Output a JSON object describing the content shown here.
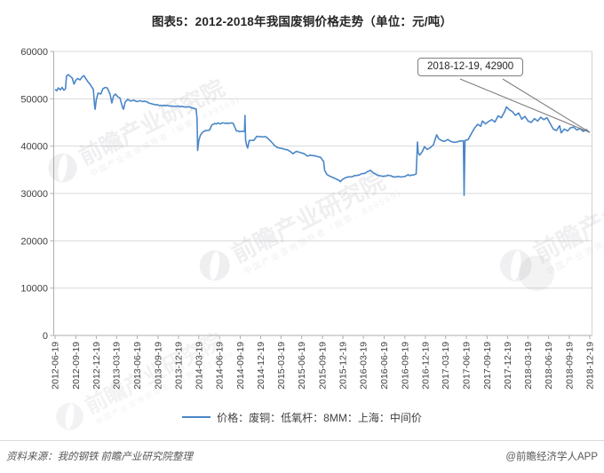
{
  "title": "图表5：2012-2018年我国废铜价格走势（单位：元/吨）",
  "annotation": {
    "label": "2018-12-19, 42900"
  },
  "legend": {
    "label": "价格：废铜：低氧杆：8MM：上海：中间价"
  },
  "footer": {
    "source": "资料来源：我的钢铁  前瞻产业研究院整理",
    "brand": "@前瞻经济学人APP"
  },
  "watermark": {
    "text": "前瞻产业研究院",
    "subtext": "中国产业咨询领导者",
    "stock": "（股票：839599）"
  },
  "colors": {
    "line": "#4a86c8",
    "grid": "#d9d9d9",
    "axis": "#aeaeae",
    "border": "#d2d2d2",
    "tick_label": "#404040",
    "callout": "#7f7f7f",
    "watermark": "#8b8b97"
  },
  "chart_data": {
    "type": "line",
    "title": "图表5：2012-2018年我国废铜价格走势（单位：元/吨）",
    "unit": "元/吨",
    "ylim": [
      0,
      60000
    ],
    "ytick_step": 10000,
    "grid": "horizontal",
    "legend_position": "bottom",
    "x_ticks": [
      "2012-06-19",
      "2012-09-19",
      "2012-12-19",
      "2013-03-19",
      "2013-06-19",
      "2013-09-19",
      "2013-12-19",
      "2014-03-19",
      "2014-06-19",
      "2014-09-19",
      "2014-12-19",
      "2015-03-19",
      "2015-06-19",
      "2015-09-19",
      "2015-12-19",
      "2016-03-19",
      "2016-06-19",
      "2016-09-19",
      "2016-12-19",
      "2017-03-19",
      "2017-06-19",
      "2017-09-19",
      "2017-12-19",
      "2018-03-19",
      "2018-06-19",
      "2018-09-19",
      "2018-12-19"
    ],
    "annotation": {
      "date": "2018-12-19",
      "value": 42900,
      "label": "2018-12-19, 42900"
    },
    "series": [
      {
        "name": "价格：废铜：低氧杆：8MM：上海：中间价",
        "points": [
          [
            "2012-06-19",
            52000
          ],
          [
            "2012-06-26",
            51700
          ],
          [
            "2012-07-03",
            52300
          ],
          [
            "2012-07-12",
            51900
          ],
          [
            "2012-07-20",
            52400
          ],
          [
            "2012-07-28",
            51800
          ],
          [
            "2012-08-04",
            52100
          ],
          [
            "2012-08-09",
            54800
          ],
          [
            "2012-08-16",
            55100
          ],
          [
            "2012-08-24",
            54800
          ],
          [
            "2012-09-03",
            54400
          ],
          [
            "2012-09-11",
            53100
          ],
          [
            "2012-09-19",
            53900
          ],
          [
            "2012-09-27",
            54300
          ],
          [
            "2012-10-08",
            54000
          ],
          [
            "2012-10-17",
            54600
          ],
          [
            "2012-10-25",
            54900
          ],
          [
            "2012-11-02",
            54300
          ],
          [
            "2012-11-12",
            53600
          ],
          [
            "2012-11-21",
            53100
          ],
          [
            "2012-11-29",
            52500
          ],
          [
            "2012-12-06",
            52000
          ],
          [
            "2012-12-12",
            48300
          ],
          [
            "2012-12-14",
            47800
          ],
          [
            "2012-12-19",
            49800
          ],
          [
            "2012-12-27",
            51200
          ],
          [
            "2013-01-08",
            51000
          ],
          [
            "2013-01-17",
            52100
          ],
          [
            "2013-01-28",
            52400
          ],
          [
            "2013-02-06",
            52300
          ],
          [
            "2013-02-18",
            51000
          ],
          [
            "2013-02-26",
            49100
          ],
          [
            "2013-03-06",
            50600
          ],
          [
            "2013-03-14",
            51000
          ],
          [
            "2013-03-25",
            50400
          ],
          [
            "2013-04-03",
            50200
          ],
          [
            "2013-04-15",
            48100
          ],
          [
            "2013-04-19",
            47800
          ],
          [
            "2013-04-26",
            49300
          ],
          [
            "2013-05-08",
            49900
          ],
          [
            "2013-05-20",
            49500
          ],
          [
            "2013-06-03",
            49700
          ],
          [
            "2013-06-17",
            49400
          ],
          [
            "2013-07-01",
            49600
          ],
          [
            "2013-07-15",
            49400
          ],
          [
            "2013-08-01",
            49400
          ],
          [
            "2013-08-20",
            49000
          ],
          [
            "2013-09-10",
            48700
          ],
          [
            "2013-10-08",
            48500
          ],
          [
            "2013-11-05",
            48500
          ],
          [
            "2013-12-03",
            48400
          ],
          [
            "2014-01-07",
            48400
          ],
          [
            "2014-02-11",
            48200
          ],
          [
            "2014-03-07",
            47900
          ],
          [
            "2014-03-11",
            45900
          ],
          [
            "2014-03-13",
            41500
          ],
          [
            "2014-03-14",
            39100
          ],
          [
            "2014-03-19",
            41200
          ],
          [
            "2014-03-26",
            42300
          ],
          [
            "2014-04-04",
            42900
          ],
          [
            "2014-04-18",
            43300
          ],
          [
            "2014-05-06",
            43400
          ],
          [
            "2014-05-16",
            44500
          ],
          [
            "2014-05-30",
            44800
          ],
          [
            "2014-06-17",
            44800
          ],
          [
            "2014-07-08",
            44900
          ],
          [
            "2014-07-29",
            44800
          ],
          [
            "2014-08-19",
            44800
          ],
          [
            "2014-09-02",
            43200
          ],
          [
            "2014-09-23",
            43100
          ],
          [
            "2014-10-08",
            43100
          ],
          [
            "2014-10-10",
            46500
          ],
          [
            "2014-10-13",
            41300
          ],
          [
            "2014-10-17",
            40300
          ],
          [
            "2014-10-22",
            39600
          ],
          [
            "2014-10-29",
            41200
          ],
          [
            "2014-11-18",
            41200
          ],
          [
            "2014-12-02",
            42100
          ],
          [
            "2014-12-23",
            42000
          ],
          [
            "2015-01-13",
            41900
          ],
          [
            "2015-01-27",
            41300
          ],
          [
            "2015-02-10",
            40600
          ],
          [
            "2015-03-03",
            39700
          ],
          [
            "2015-03-24",
            39500
          ],
          [
            "2015-04-14",
            39300
          ],
          [
            "2015-04-28",
            38900
          ],
          [
            "2015-05-12",
            38400
          ],
          [
            "2015-05-26",
            38900
          ],
          [
            "2015-06-09",
            38700
          ],
          [
            "2015-06-30",
            38400
          ],
          [
            "2015-07-14",
            37900
          ],
          [
            "2015-07-28",
            38100
          ],
          [
            "2015-08-18",
            37900
          ],
          [
            "2015-09-08",
            37700
          ],
          [
            "2015-09-24",
            36800
          ],
          [
            "2015-09-29",
            34900
          ],
          [
            "2015-10-09",
            34000
          ],
          [
            "2015-10-20",
            33700
          ],
          [
            "2015-11-03",
            33400
          ],
          [
            "2015-11-17",
            33100
          ],
          [
            "2015-12-01",
            32800
          ],
          [
            "2015-12-08",
            32500
          ],
          [
            "2015-12-15",
            32900
          ],
          [
            "2015-12-29",
            33300
          ],
          [
            "2016-01-12",
            33500
          ],
          [
            "2016-02-02",
            33600
          ],
          [
            "2016-03-01",
            33900
          ],
          [
            "2016-03-22",
            34200
          ],
          [
            "2016-04-12",
            34700
          ],
          [
            "2016-04-19",
            34900
          ],
          [
            "2016-05-03",
            34300
          ],
          [
            "2016-05-24",
            33800
          ],
          [
            "2016-06-14",
            33600
          ],
          [
            "2016-07-05",
            33900
          ],
          [
            "2016-07-26",
            33500
          ],
          [
            "2016-08-16",
            33600
          ],
          [
            "2016-09-06",
            33500
          ],
          [
            "2016-09-27",
            33800
          ],
          [
            "2016-10-18",
            33900
          ],
          [
            "2016-11-08",
            34100
          ],
          [
            "2016-11-11",
            37500
          ],
          [
            "2016-11-14",
            40900
          ],
          [
            "2016-11-17",
            38600
          ],
          [
            "2016-11-24",
            38100
          ],
          [
            "2016-12-06",
            38900
          ],
          [
            "2016-12-15",
            39900
          ],
          [
            "2016-12-27",
            39300
          ],
          [
            "2017-01-10",
            39700
          ],
          [
            "2017-01-24",
            40300
          ],
          [
            "2017-02-07",
            42400
          ],
          [
            "2017-02-16",
            41600
          ],
          [
            "2017-02-28",
            41200
          ],
          [
            "2017-03-14",
            41000
          ],
          [
            "2017-03-28",
            41400
          ],
          [
            "2017-04-11",
            41000
          ],
          [
            "2017-04-25",
            40800
          ],
          [
            "2017-05-09",
            40900
          ],
          [
            "2017-05-23",
            41100
          ],
          [
            "2017-06-06",
            41100
          ],
          [
            "2017-06-09",
            29600
          ],
          [
            "2017-06-13",
            41200
          ],
          [
            "2017-06-27",
            41400
          ],
          [
            "2017-07-11",
            42600
          ],
          [
            "2017-07-25",
            43800
          ],
          [
            "2017-08-08",
            44600
          ],
          [
            "2017-08-22",
            44200
          ],
          [
            "2017-08-29",
            45300
          ],
          [
            "2017-09-12",
            44700
          ],
          [
            "2017-09-26",
            45200
          ],
          [
            "2017-10-10",
            45600
          ],
          [
            "2017-10-24",
            45100
          ],
          [
            "2017-11-07",
            46400
          ],
          [
            "2017-11-21",
            46000
          ],
          [
            "2017-12-05",
            47200
          ],
          [
            "2017-12-14",
            48300
          ],
          [
            "2017-12-26",
            47700
          ],
          [
            "2018-01-09",
            47300
          ],
          [
            "2018-01-23",
            46500
          ],
          [
            "2018-02-06",
            47000
          ],
          [
            "2018-02-20",
            45700
          ],
          [
            "2018-03-06",
            46300
          ],
          [
            "2018-03-20",
            45300
          ],
          [
            "2018-04-03",
            45000
          ],
          [
            "2018-04-17",
            45800
          ],
          [
            "2018-05-02",
            45300
          ],
          [
            "2018-05-15",
            46100
          ],
          [
            "2018-05-29",
            45600
          ],
          [
            "2018-06-12",
            46000
          ],
          [
            "2018-06-26",
            44800
          ],
          [
            "2018-07-10",
            43600
          ],
          [
            "2018-07-24",
            43300
          ],
          [
            "2018-08-07",
            44300
          ],
          [
            "2018-08-14",
            42800
          ],
          [
            "2018-08-28",
            43600
          ],
          [
            "2018-09-11",
            43200
          ],
          [
            "2018-09-25",
            43900
          ],
          [
            "2018-10-09",
            44000
          ],
          [
            "2018-10-23",
            43400
          ],
          [
            "2018-11-06",
            43700
          ],
          [
            "2018-11-20",
            43100
          ],
          [
            "2018-12-04",
            43500
          ],
          [
            "2018-12-11",
            43100
          ],
          [
            "2018-12-19",
            42900
          ]
        ]
      }
    ]
  }
}
